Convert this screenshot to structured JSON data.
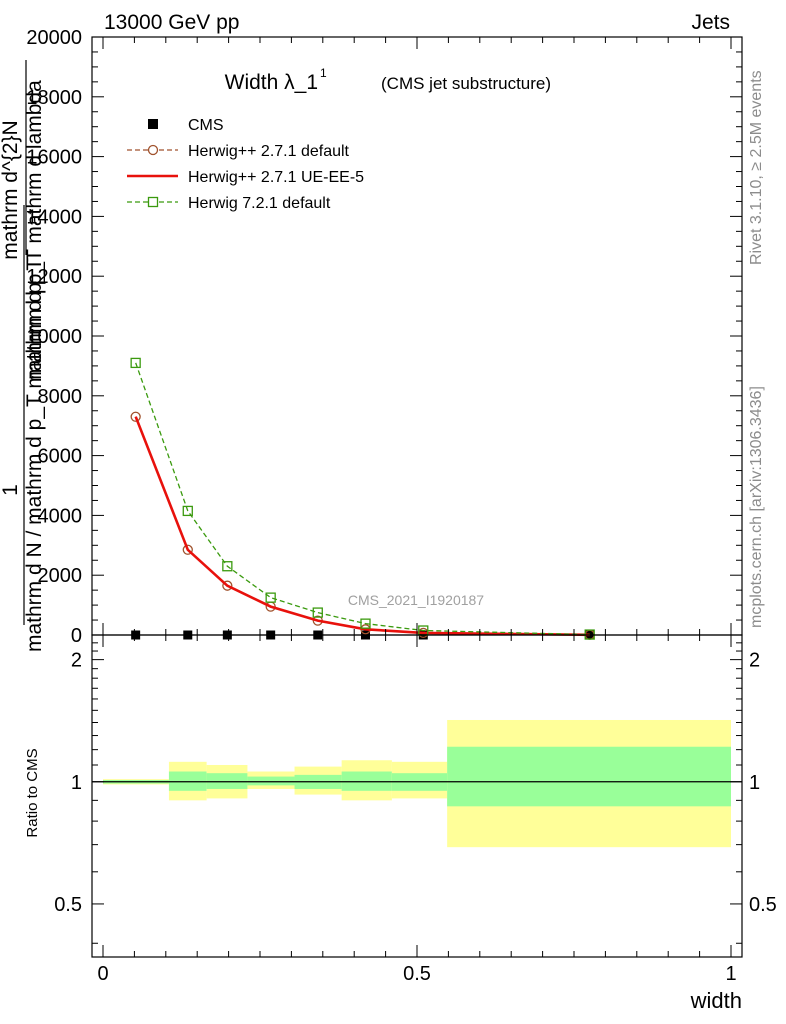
{
  "header": {
    "left": "13000 GeV pp",
    "right": "Jets"
  },
  "title": {
    "main": "Width λ_1",
    "sup": "1",
    "sub": "(CMS jet substructure)"
  },
  "side_labels": {
    "rivet": "Rivet 3.1.10, ≥ 2.5M events",
    "mcplots": "mcplots.cern.ch [arXiv:1306.3436]"
  },
  "watermark": "CMS_2021_I1920187",
  "ylabel_main": {
    "numerator": "1",
    "denominator": "mathrm d N / mathrm d p_T mathrm d p_T",
    "frac_num": "mathrm d^{2}N",
    "frac_den": "mathrm d p_T mathrm d lambda"
  },
  "ylabel_ratio": "Ratio to CMS",
  "xlabel": "width",
  "legend": [
    {
      "label": "CMS",
      "color": "#000000",
      "marker": "square-filled",
      "line": "none"
    },
    {
      "label": "Herwig++ 2.7.1 default",
      "color": "#a0522d",
      "marker": "circle-open",
      "line": "dashed"
    },
    {
      "label": "Herwig++ 2.7.1 UE-EE-5",
      "color": "#e8110c",
      "marker": "none",
      "line": "solid"
    },
    {
      "label": "Herwig 7.2.1 default",
      "color": "#3a9a0e",
      "marker": "square-open",
      "line": "dashed"
    }
  ],
  "chart_data": [
    {
      "type": "line",
      "panel": "main",
      "xlim": [
        0,
        1
      ],
      "ylim": [
        0,
        20000
      ],
      "y_ticks": [
        0,
        2000,
        4000,
        6000,
        8000,
        10000,
        12000,
        14000,
        16000,
        18000,
        20000
      ],
      "y_tick_labels": [
        "0",
        "2000",
        "4000",
        "6000",
        "8000",
        "10000",
        "12000",
        "14000",
        "16000",
        "18000",
        "20000"
      ],
      "series": [
        {
          "name": "CMS",
          "color": "#000000",
          "x": [
            0.052,
            0.135,
            0.198,
            0.267,
            0.342,
            0.418,
            0.51,
            0.775
          ],
          "y": [
            0,
            0,
            0,
            0,
            0,
            0,
            0,
            0
          ]
        },
        {
          "name": "Herwig++ 2.7.1 default",
          "color": "#a0522d",
          "x": [
            0.052,
            0.135,
            0.198,
            0.267,
            0.342,
            0.418,
            0.51,
            0.775
          ],
          "y": [
            7300,
            2850,
            1650,
            950,
            480,
            190,
            70,
            8
          ]
        },
        {
          "name": "Herwig++ 2.7.1 UE-EE-5",
          "color": "#e8110c",
          "x": [
            0.052,
            0.135,
            0.198,
            0.267,
            0.342,
            0.418,
            0.51,
            0.775
          ],
          "y": [
            7300,
            2850,
            1650,
            950,
            480,
            190,
            70,
            8
          ]
        },
        {
          "name": "Herwig 7.2.1 default",
          "color": "#3a9a0e",
          "x": [
            0.052,
            0.135,
            0.198,
            0.267,
            0.342,
            0.418,
            0.51,
            0.775
          ],
          "y": [
            9100,
            4150,
            2300,
            1250,
            750,
            380,
            150,
            15
          ]
        }
      ]
    },
    {
      "type": "area",
      "panel": "ratio",
      "xlim": [
        0,
        1
      ],
      "ylim": [
        0.37,
        2.3
      ],
      "log_y": true,
      "y_ticks": [
        0.5,
        1,
        2
      ],
      "y_tick_labels": [
        "0.5",
        "1",
        "2"
      ],
      "x_ticks": [
        0,
        0.5,
        1
      ],
      "x_tick_labels": [
        "0",
        "0.5",
        "1"
      ],
      "reference_line": 1,
      "bands": [
        {
          "x0": 0.0,
          "x1": 0.105,
          "stat": [
            0.99,
            1.01
          ],
          "total": [
            0.985,
            1.015
          ]
        },
        {
          "x0": 0.105,
          "x1": 0.165,
          "stat": [
            0.95,
            1.06
          ],
          "total": [
            0.9,
            1.12
          ]
        },
        {
          "x0": 0.165,
          "x1": 0.23,
          "stat": [
            0.96,
            1.05
          ],
          "total": [
            0.91,
            1.1
          ]
        },
        {
          "x0": 0.23,
          "x1": 0.305,
          "stat": [
            0.98,
            1.03
          ],
          "total": [
            0.96,
            1.06
          ]
        },
        {
          "x0": 0.305,
          "x1": 0.38,
          "stat": [
            0.96,
            1.04
          ],
          "total": [
            0.93,
            1.09
          ]
        },
        {
          "x0": 0.38,
          "x1": 0.46,
          "stat": [
            0.95,
            1.06
          ],
          "total": [
            0.9,
            1.13
          ]
        },
        {
          "x0": 0.46,
          "x1": 0.548,
          "stat": [
            0.95,
            1.05
          ],
          "total": [
            0.91,
            1.12
          ]
        },
        {
          "x0": 0.548,
          "x1": 1.0,
          "stat": [
            0.87,
            1.22
          ],
          "total": [
            0.69,
            1.42
          ]
        }
      ],
      "colors": {
        "stat": "#99ff99",
        "total": "#ffff99"
      }
    }
  ]
}
